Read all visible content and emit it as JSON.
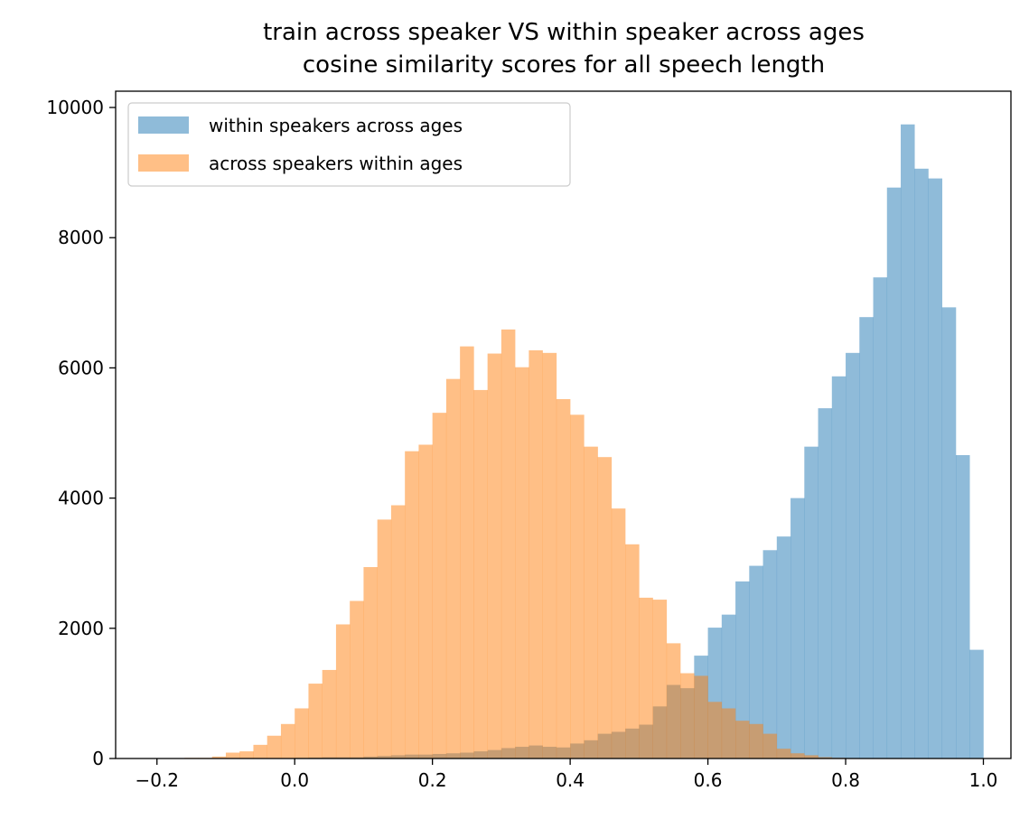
{
  "chart_data": {
    "type": "histogram",
    "title": [
      "train across speaker VS within speaker across ages",
      "cosine similarity scores for all speech length"
    ],
    "xlabel": "",
    "ylabel": "",
    "xlim": [
      -0.26,
      1.04
    ],
    "ylim": [
      0,
      10250
    ],
    "xticks": [
      -0.2,
      0.0,
      0.2,
      0.4,
      0.6,
      0.8,
      1.0
    ],
    "xtick_labels": [
      "−0.2",
      "0.0",
      "0.2",
      "0.4",
      "0.6",
      "0.8",
      "1.0"
    ],
    "yticks": [
      0,
      2000,
      4000,
      6000,
      8000,
      10000
    ],
    "ytick_labels": [
      "0",
      "2000",
      "4000",
      "6000",
      "8000",
      "10000"
    ],
    "grid": false,
    "legend_position": "top-left",
    "opacity": 0.5,
    "series": [
      {
        "name": "within speakers across ages",
        "color": "#1f77b4",
        "bin_start": -0.2,
        "bin_width": 0.02,
        "values": [
          0,
          0,
          0,
          0,
          0,
          0,
          0,
          0,
          0,
          0,
          10,
          15,
          20,
          20,
          20,
          30,
          40,
          50,
          60,
          60,
          70,
          80,
          90,
          110,
          130,
          160,
          180,
          200,
          180,
          170,
          230,
          280,
          380,
          410,
          460,
          520,
          800,
          1130,
          1080,
          1580,
          2010,
          2210,
          2720,
          2960,
          3200,
          3410,
          4000,
          4790,
          5380,
          5870,
          6230,
          6780,
          7390,
          8770,
          9740,
          9060,
          8910,
          6930,
          4660,
          1670
        ]
      },
      {
        "name": "across speakers within ages",
        "color": "#ff7f0e",
        "bin_start": -0.2,
        "bin_width": 0.02,
        "values": [
          0,
          0,
          10,
          10,
          30,
          90,
          110,
          210,
          350,
          530,
          770,
          1150,
          1360,
          2060,
          2420,
          2940,
          3670,
          3890,
          4720,
          4820,
          5310,
          5830,
          6330,
          5660,
          6220,
          6590,
          6010,
          6270,
          6230,
          5520,
          5280,
          4790,
          4630,
          3840,
          3290,
          2470,
          2440,
          1770,
          1310,
          1270,
          870,
          770,
          580,
          530,
          380,
          150,
          80,
          50,
          20,
          10,
          5,
          0,
          0,
          0,
          0,
          0,
          0,
          0,
          0,
          0
        ]
      }
    ]
  }
}
